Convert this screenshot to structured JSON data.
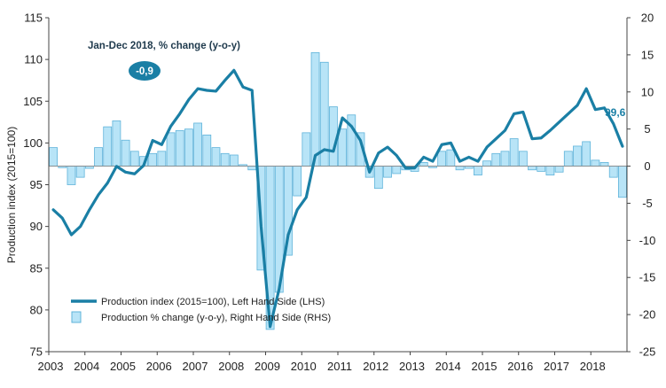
{
  "chart_data": {
    "type": "bar+line",
    "title": "",
    "annotation": "Jan-Dec 2018, % change (y-o-y)",
    "badge_value": "-0,9",
    "last_value_label": "99,6",
    "colors": {
      "line": "#1a7fa5",
      "bar_fill": "#b8e4f7",
      "bar_stroke": "#5fb3da",
      "badge": "#1a7fa5"
    },
    "ylabel_left": "Production index (2015=100)",
    "left_axis": {
      "min": 75,
      "max": 115,
      "ticks": [
        "75",
        "80",
        "85",
        "90",
        "95",
        "100",
        "105",
        "110",
        "115"
      ]
    },
    "right_axis": {
      "min": -25,
      "max": 20,
      "ticks": [
        "-25",
        "-20",
        "-15",
        "-10",
        "-5",
        "0",
        "5",
        "10",
        "15",
        "20"
      ]
    },
    "years": [
      "2003",
      "2004",
      "2005",
      "2006",
      "2007",
      "2008",
      "2009",
      "2010",
      "2011",
      "2012",
      "2013",
      "2014",
      "2015",
      "2016",
      "2017",
      "2018"
    ],
    "x_start": 2003.0,
    "x_end": 2019.0,
    "series": [
      {
        "name": "Production index (2015=100), Left Hand Side (LHS)",
        "axis": "left",
        "type": "line",
        "x": [
          2003.0,
          2003.25,
          2003.5,
          2003.75,
          2004.0,
          2004.25,
          2004.5,
          2004.75,
          2005.0,
          2005.25,
          2005.5,
          2005.75,
          2006.0,
          2006.25,
          2006.5,
          2006.75,
          2007.0,
          2007.25,
          2007.5,
          2007.75,
          2008.0,
          2008.25,
          2008.5,
          2008.75,
          2009.0,
          2009.25,
          2009.5,
          2009.75,
          2010.0,
          2010.25,
          2010.5,
          2010.75,
          2011.0,
          2011.25,
          2011.5,
          2011.75,
          2012.0,
          2012.25,
          2012.5,
          2012.75,
          2013.0,
          2013.25,
          2013.5,
          2013.75,
          2014.0,
          2014.25,
          2014.5,
          2014.75,
          2015.0,
          2015.25,
          2015.5,
          2015.75,
          2016.0,
          2016.25,
          2016.5,
          2016.75,
          2017.0,
          2017.25,
          2017.5,
          2017.75,
          2018.0,
          2018.25,
          2018.5,
          2018.75
        ],
        "values": [
          92.0,
          91.0,
          89.0,
          90.0,
          92.0,
          93.8,
          95.2,
          97.2,
          96.5,
          96.3,
          97.3,
          100.3,
          99.8,
          102.0,
          103.5,
          105.2,
          106.5,
          106.3,
          106.2,
          107.5,
          108.7,
          106.7,
          106.3,
          90.0,
          78.0,
          82.5,
          89.0,
          92.0,
          93.5,
          98.5,
          99.2,
          99.0,
          103.0,
          102.0,
          100.3,
          96.5,
          98.8,
          99.5,
          98.5,
          97.0,
          97.0,
          98.3,
          97.8,
          99.8,
          100.0,
          97.8,
          98.3,
          97.8,
          99.5,
          100.5,
          101.5,
          103.5,
          103.7,
          100.5,
          100.6,
          101.5,
          102.5,
          103.5,
          104.5,
          106.5,
          104.0,
          104.2,
          102.3,
          99.6
        ]
      },
      {
        "name": "Production % change (y-o-y), Right Hand Side (RHS)",
        "axis": "right",
        "type": "bar",
        "x": [
          2003.0,
          2003.25,
          2003.5,
          2003.75,
          2004.0,
          2004.25,
          2004.5,
          2004.75,
          2005.0,
          2005.25,
          2005.5,
          2005.75,
          2006.0,
          2006.25,
          2006.5,
          2006.75,
          2007.0,
          2007.25,
          2007.5,
          2007.75,
          2008.0,
          2008.25,
          2008.5,
          2008.75,
          2009.0,
          2009.25,
          2009.5,
          2009.75,
          2010.0,
          2010.25,
          2010.5,
          2010.75,
          2011.0,
          2011.25,
          2011.5,
          2011.75,
          2012.0,
          2012.25,
          2012.5,
          2012.75,
          2013.0,
          2013.25,
          2013.5,
          2013.75,
          2014.0,
          2014.25,
          2014.5,
          2014.75,
          2015.0,
          2015.25,
          2015.5,
          2015.75,
          2016.0,
          2016.25,
          2016.5,
          2016.75,
          2017.0,
          2017.25,
          2017.5,
          2017.75,
          2018.0,
          2018.25,
          2018.5,
          2018.75
        ],
        "values": [
          2.5,
          -0.2,
          -2.5,
          -1.5,
          -0.3,
          2.5,
          5.3,
          6.1,
          3.5,
          2.0,
          1.3,
          1.7,
          2.0,
          4.5,
          4.8,
          5.0,
          5.8,
          4.2,
          2.5,
          1.7,
          1.5,
          0.2,
          -0.5,
          -14.0,
          -22.0,
          -17.0,
          -12.0,
          -4.0,
          4.5,
          15.3,
          14.0,
          8.0,
          5.0,
          6.9,
          4.5,
          -1.5,
          -3.0,
          -1.5,
          -1.0,
          -0.5,
          -0.7,
          0.5,
          -0.2,
          2.0,
          2.2,
          -0.5,
          -0.3,
          -1.2,
          0.7,
          1.7,
          2.0,
          3.7,
          2.0,
          -0.5,
          -0.7,
          -1.2,
          -0.8,
          2.0,
          2.7,
          3.3,
          0.8,
          0.5,
          -1.5,
          -4.2
        ]
      }
    ]
  }
}
